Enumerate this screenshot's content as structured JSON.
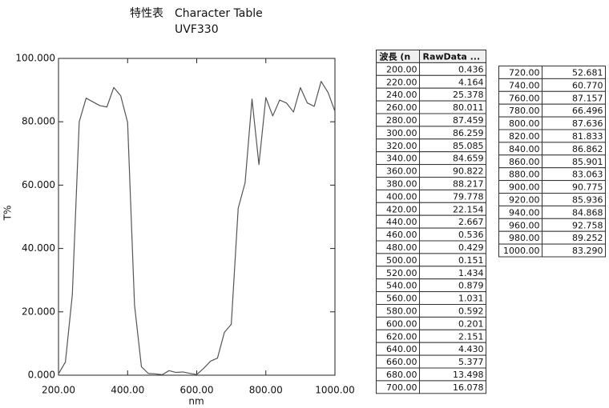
{
  "title": "特性表　Character Table",
  "subtitle": "UVF330",
  "chart_data": {
    "type": "line",
    "xlabel": "nm",
    "ylabel": "T%",
    "x": [
      200,
      220,
      240,
      260,
      280,
      300,
      320,
      340,
      360,
      380,
      400,
      420,
      440,
      460,
      480,
      500,
      520,
      540,
      560,
      580,
      600,
      620,
      640,
      660,
      680,
      700,
      720,
      740,
      760,
      780,
      800,
      820,
      840,
      860,
      880,
      900,
      920,
      940,
      960,
      980,
      1000
    ],
    "values": [
      0.436,
      4.164,
      25.378,
      80.011,
      87.459,
      86.259,
      85.085,
      84.659,
      90.822,
      88.217,
      79.778,
      22.154,
      2.667,
      0.536,
      0.429,
      0.151,
      1.434,
      0.879,
      1.031,
      0.592,
      0.201,
      2.151,
      4.43,
      5.377,
      13.498,
      16.078,
      52.681,
      60.77,
      87.157,
      66.496,
      87.636,
      81.833,
      86.862,
      85.901,
      83.063,
      90.775,
      85.936,
      84.868,
      92.758,
      89.252,
      83.29
    ],
    "color": "#555555",
    "xlim": [
      200,
      1000
    ],
    "xticks": [
      {
        "value": 200,
        "label": "200.00"
      },
      {
        "value": 400,
        "label": "400.00"
      },
      {
        "value": 600,
        "label": "600.00"
      },
      {
        "value": 800,
        "label": "800.00"
      },
      {
        "value": 1000,
        "label": "1000.00"
      }
    ],
    "ylim": [
      0,
      100
    ],
    "yticks": [
      {
        "value": 0,
        "label": "0.000"
      },
      {
        "value": 20,
        "label": "20.000"
      },
      {
        "value": 40,
        "label": "40.000"
      },
      {
        "value": 60,
        "label": "60.000"
      },
      {
        "value": 80,
        "label": "80.000"
      },
      {
        "value": 100,
        "label": "100.000"
      }
    ],
    "grid": false
  },
  "table1": {
    "header": [
      "波長 (n",
      "RawData ..."
    ],
    "rows": [
      [
        "200.00",
        "0.436"
      ],
      [
        "220.00",
        "4.164"
      ],
      [
        "240.00",
        "25.378"
      ],
      [
        "260.00",
        "80.011"
      ],
      [
        "280.00",
        "87.459"
      ],
      [
        "300.00",
        "86.259"
      ],
      [
        "320.00",
        "85.085"
      ],
      [
        "340.00",
        "84.659"
      ],
      [
        "360.00",
        "90.822"
      ],
      [
        "380.00",
        "88.217"
      ],
      [
        "400.00",
        "79.778"
      ],
      [
        "420.00",
        "22.154"
      ],
      [
        "440.00",
        "2.667"
      ],
      [
        "460.00",
        "0.536"
      ],
      [
        "480.00",
        "0.429"
      ],
      [
        "500.00",
        "0.151"
      ],
      [
        "520.00",
        "1.434"
      ],
      [
        "540.00",
        "0.879"
      ],
      [
        "560.00",
        "1.031"
      ],
      [
        "580.00",
        "0.592"
      ],
      [
        "600.00",
        "0.201"
      ],
      [
        "620.00",
        "2.151"
      ],
      [
        "640.00",
        "4.430"
      ],
      [
        "660.00",
        "5.377"
      ],
      [
        "680.00",
        "13.498"
      ],
      [
        "700.00",
        "16.078"
      ]
    ]
  },
  "table2": {
    "rows": [
      [
        "720.00",
        "52.681"
      ],
      [
        "740.00",
        "60.770"
      ],
      [
        "760.00",
        "87.157"
      ],
      [
        "780.00",
        "66.496"
      ],
      [
        "800.00",
        "87.636"
      ],
      [
        "820.00",
        "81.833"
      ],
      [
        "840.00",
        "86.862"
      ],
      [
        "860.00",
        "85.901"
      ],
      [
        "880.00",
        "83.063"
      ],
      [
        "900.00",
        "90.775"
      ],
      [
        "920.00",
        "85.936"
      ],
      [
        "940.00",
        "84.868"
      ],
      [
        "960.00",
        "92.758"
      ],
      [
        "980.00",
        "89.252"
      ],
      [
        "1000.00",
        "83.290"
      ]
    ]
  }
}
